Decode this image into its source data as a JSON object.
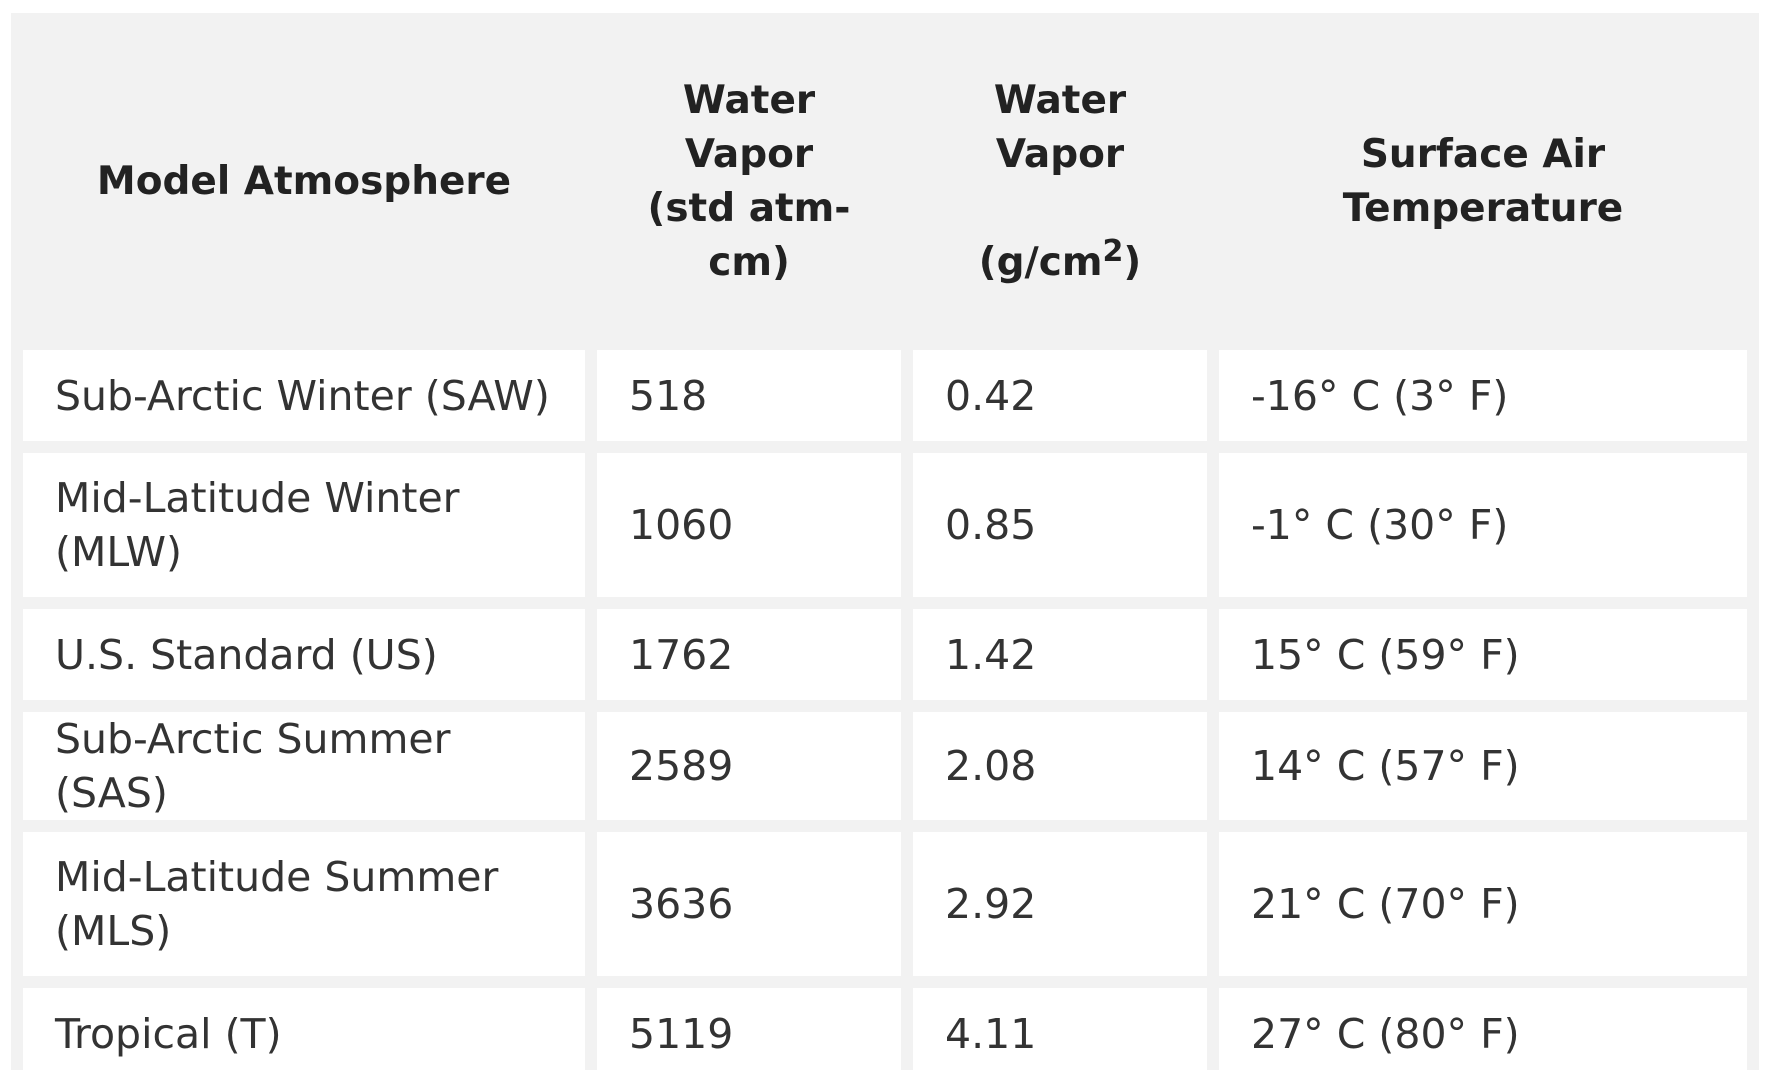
{
  "table": {
    "headers": {
      "model": "Model Atmosphere",
      "vapor_atm": [
        "Water",
        "Vapor",
        "(std atm-",
        "cm)"
      ],
      "vapor_g": [
        "Water",
        "Vapor"
      ],
      "vapor_g_unit_base": "(g/cm",
      "vapor_g_unit_sup": "2",
      "vapor_g_unit_close": ")",
      "temp": [
        "Surface Air",
        "Temperature"
      ]
    },
    "rows": [
      {
        "model": "Sub-Arctic Winter (SAW)",
        "vapor_atm": "518",
        "vapor_g": "0.42",
        "temp": "-16° C (3° F)"
      },
      {
        "model": "Mid-Latitude Winter (MLW)",
        "vapor_atm": "1060",
        "vapor_g": "0.85",
        "temp": "-1° C (30° F)"
      },
      {
        "model": "U.S. Standard (US)",
        "vapor_atm": "1762",
        "vapor_g": "1.42",
        "temp": "15° C (59° F)"
      },
      {
        "model": "Sub-Arctic Summer (SAS)",
        "vapor_atm": "2589",
        "vapor_g": "2.08",
        "temp": "14° C (57° F)"
      },
      {
        "model": "Mid-Latitude Summer (MLS)",
        "vapor_atm": "3636",
        "vapor_g": "2.92",
        "temp": "21° C (70° F)"
      },
      {
        "model": "Tropical (T)",
        "vapor_atm": "5119",
        "vapor_g": "4.11",
        "temp": "27° C (80° F)"
      }
    ]
  }
}
